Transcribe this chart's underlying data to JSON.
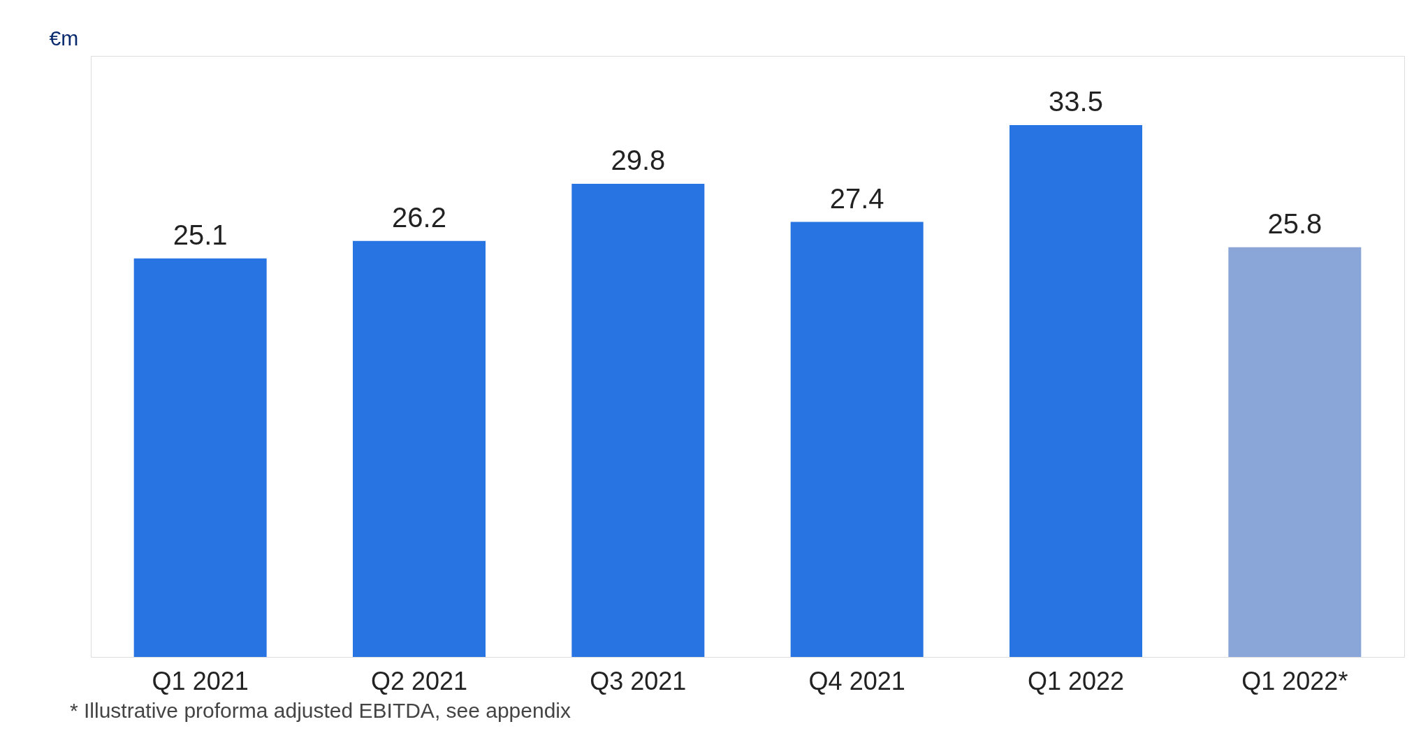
{
  "chart_data": {
    "type": "bar",
    "ylabel": "€m",
    "categories": [
      "Q1 2021",
      "Q2 2021",
      "Q3 2021",
      "Q4 2021",
      "Q1 2022",
      "Q1 2022*"
    ],
    "values": [
      25.1,
      26.2,
      29.8,
      27.4,
      33.5,
      25.8
    ],
    "colors": [
      "#2874e2",
      "#2874e2",
      "#2874e2",
      "#2874e2",
      "#2874e2",
      "#8aa6d8"
    ],
    "data_labels": true,
    "annotations": [
      "* Illustrative proforma adjusted EBITDA, see appendix"
    ]
  }
}
